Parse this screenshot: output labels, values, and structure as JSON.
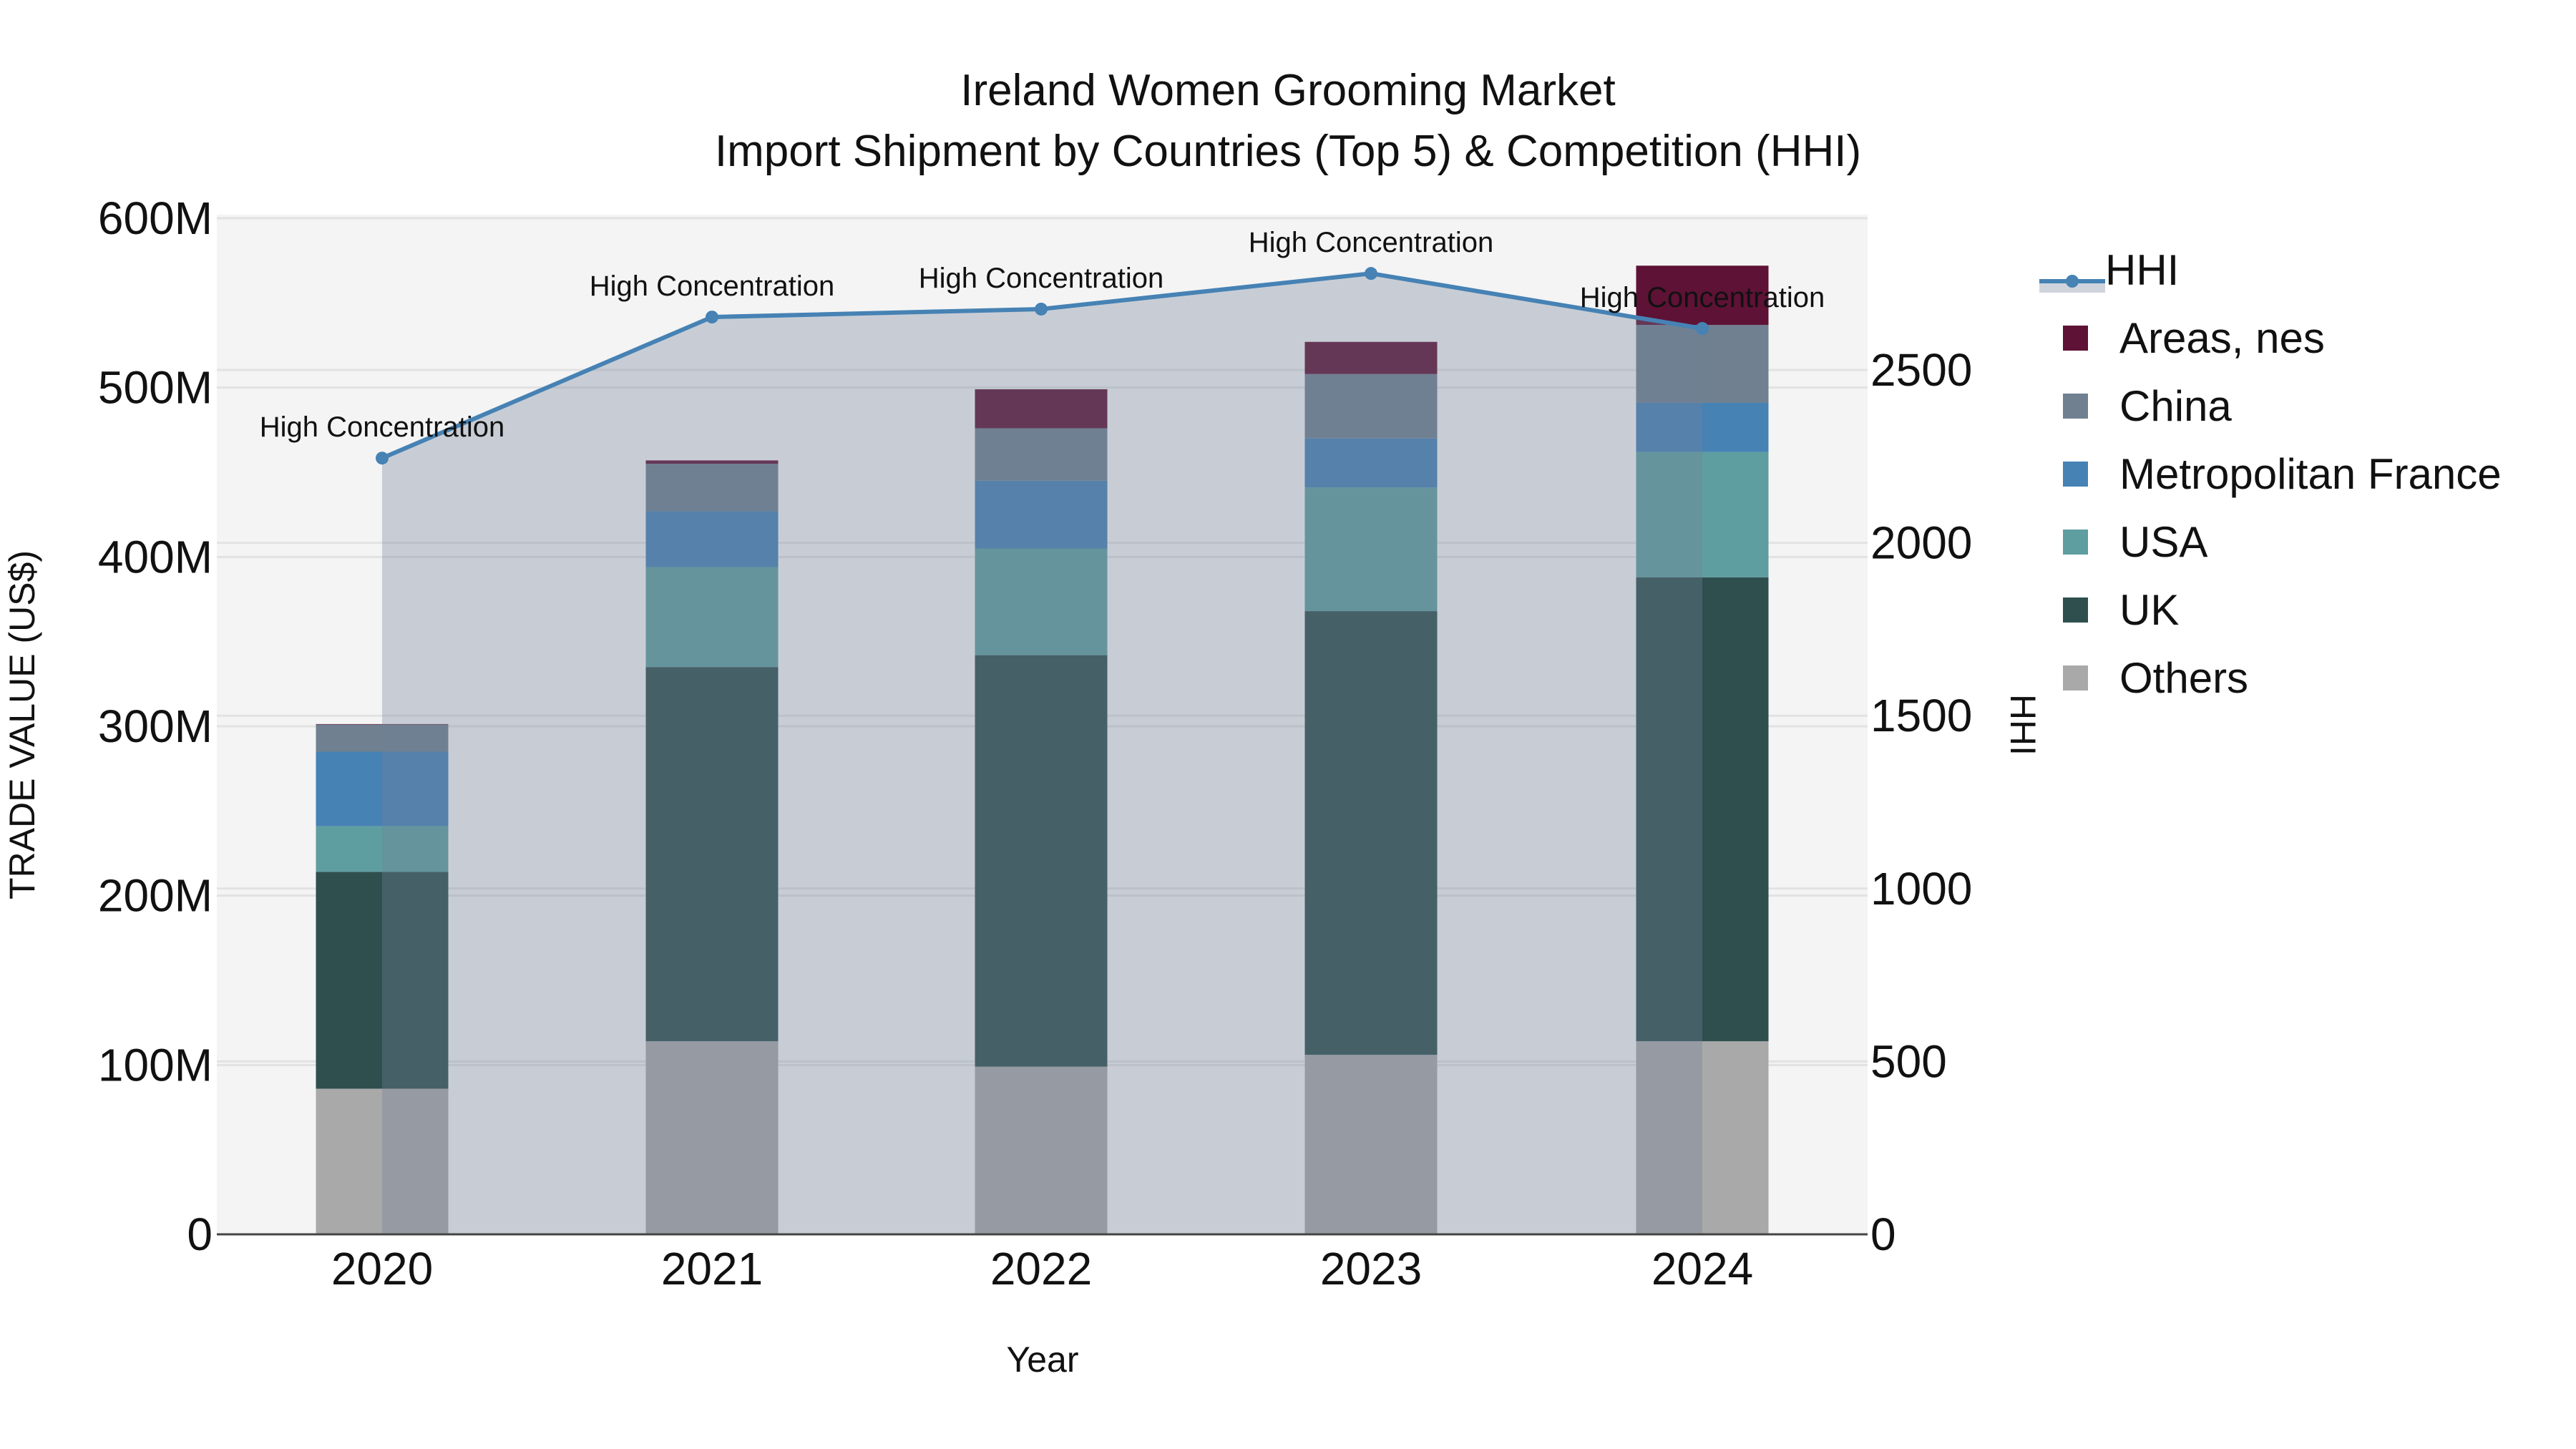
{
  "title": {
    "line1": "Ireland Women Grooming Market",
    "line2": "Import Shipment by Countries (Top 5) & Competition (HHI)"
  },
  "axes": {
    "x_title": "Year",
    "y_left_title": "TRADE VALUE (US$)",
    "y_right_title": "HHI",
    "y_left_ticks": [
      "0",
      "100M",
      "200M",
      "300M",
      "400M",
      "500M",
      "600M"
    ],
    "y_right_ticks": [
      "0",
      "500",
      "1000",
      "1500",
      "2000",
      "2500"
    ],
    "x_ticks": [
      "2020",
      "2021",
      "2022",
      "2023",
      "2024"
    ]
  },
  "legend": {
    "items": [
      {
        "label": "HHI",
        "type": "line",
        "color": "#4682b4"
      },
      {
        "label": "Areas, nes",
        "type": "bar",
        "color": "#5e1235"
      },
      {
        "label": "China",
        "type": "bar",
        "color": "#708090"
      },
      {
        "label": "Metropolitan France",
        "type": "bar",
        "color": "#4682b4"
      },
      {
        "label": "USA",
        "type": "bar",
        "color": "#5f9ea0"
      },
      {
        "label": "UK",
        "type": "bar",
        "color": "#2f4f4f"
      },
      {
        "label": "Others",
        "type": "bar",
        "color": "#a9a9a9"
      }
    ]
  },
  "annotations": [
    "High Concentration",
    "High Concentration",
    "High Concentration",
    "High Concentration",
    "High Concentration"
  ],
  "chart_data": {
    "type": "bar",
    "subtype": "stacked bar with line (dual axis)",
    "title": "Ireland Women Grooming Market — Import Shipment by Countries (Top 5) & Competition (HHI)",
    "xlabel": "Year",
    "ylabel": "TRADE VALUE (US$)",
    "y2label": "HHI",
    "categories": [
      "2020",
      "2021",
      "2022",
      "2023",
      "2024"
    ],
    "ylim": [
      0,
      600000000
    ],
    "y2lim": [
      0,
      2940
    ],
    "grid": true,
    "legend_position": "right",
    "series": [
      {
        "name": "Others",
        "type": "bar",
        "color": "#a9a9a9",
        "values": [
          86000000,
          114000000,
          99000000,
          106000000,
          114000000
        ]
      },
      {
        "name": "UK",
        "type": "bar",
        "color": "#2f4f4f",
        "values": [
          128000000,
          221000000,
          243000000,
          262000000,
          274000000
        ]
      },
      {
        "name": "USA",
        "type": "bar",
        "color": "#5f9ea0",
        "values": [
          27000000,
          59000000,
          63000000,
          73000000,
          74000000
        ]
      },
      {
        "name": "Metropolitan France",
        "type": "bar",
        "color": "#4682b4",
        "values": [
          44000000,
          33000000,
          40000000,
          29000000,
          29000000
        ]
      },
      {
        "name": "China",
        "type": "bar",
        "color": "#708090",
        "values": [
          16000000,
          28000000,
          31000000,
          38000000,
          46000000
        ]
      },
      {
        "name": "Areas, nes",
        "type": "bar",
        "color": "#5e1235",
        "values": [
          300000,
          2000000,
          23000000,
          19000000,
          35000000
        ]
      },
      {
        "name": "HHI",
        "type": "line",
        "axis": "y2",
        "color": "#4682b4",
        "values": [
          2245,
          2653,
          2676,
          2779,
          2620
        ]
      }
    ],
    "annotations": [
      {
        "x": "2020",
        "text": "High Concentration"
      },
      {
        "x": "2021",
        "text": "High Concentration"
      },
      {
        "x": "2022",
        "text": "High Concentration"
      },
      {
        "x": "2023",
        "text": "High Concentration"
      },
      {
        "x": "2024",
        "text": "High Concentration"
      }
    ]
  }
}
